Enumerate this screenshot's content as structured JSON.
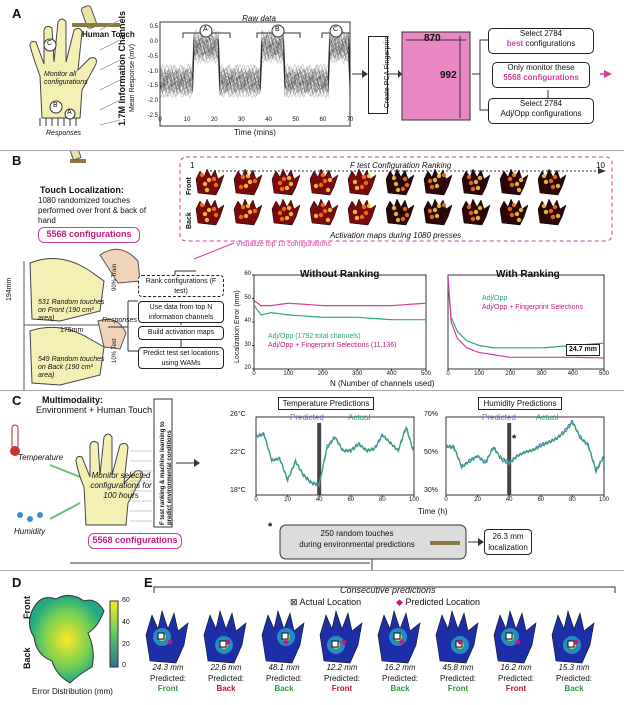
{
  "panels": {
    "a": {
      "letter": "A",
      "raw_title": "Raw data",
      "yaxis": "Mean Response (mV)",
      "xaxis": "Time (mins)",
      "channels": "1.7M Information Channels",
      "human_touch": "Human Touch",
      "monitor": "Monitor all configurations",
      "responses": "Responses",
      "phase_labels": [
        "A",
        "B",
        "C"
      ],
      "hand_letters": [
        "C",
        "B",
        "A"
      ],
      "ticks_x": [
        "0",
        "10",
        "20",
        "30",
        "40",
        "50",
        "60",
        "70"
      ],
      "ticks_y": [
        "0.5",
        "0.0",
        "-0.5",
        "-1.0",
        "-1.5",
        "-2.0",
        "-2.5"
      ],
      "pca": "Create PCA Fingerprint",
      "mat_w": "870",
      "mat_h": "992",
      "select_best_1": "Select 2784",
      "select_best_2": "best",
      "select_best_3": "configurations",
      "only_1": "Only monitor these",
      "only_2": "5568 configurations",
      "select_adj_1": "Select 2784",
      "select_adj_2": "Adj/Opp configurations"
    },
    "b": {
      "letter": "B",
      "touch_title": "Touch Localization:",
      "touch_desc": "1080 randomized touches performed over front & back of hand",
      "configs": "5568 configurations",
      "ranking_title": "F test Configuration Ranking",
      "rank_start": "1",
      "rank_end": "10",
      "front": "Front",
      "back": "Back",
      "maps_caption": "Activation maps during 1080 presses",
      "visualize": "Visualize top 10 configurations",
      "dim_v": "194mm",
      "dim_h": "175mm",
      "front_touches": "531 Random touches on Front (190 cm² area)",
      "back_touches": "549 Random touches on Back (190 cm² area)",
      "responses": "Responses",
      "train": "90% Train",
      "test": "10% Test",
      "steps": [
        "Rank configurations (F test)",
        "Use data from top N information channels",
        "Build activation maps",
        "Predict test set locations using WAMs"
      ],
      "without": "Without Ranking",
      "with": "With Ranking",
      "yaxis": "Localization Error (mm)",
      "xaxis": "N (Number of channels used)",
      "legend_left": [
        "Adj/Opp (1792 total channels)",
        "Adj/Opp + Fingerprint Selections (11,136)"
      ],
      "legend_right": [
        "Adj/Opp",
        "Adj/Opp + Fingerprint Selections"
      ],
      "error_value": "24.7 mm"
    },
    "c": {
      "letter": "C",
      "multi_title": "Multimodality:",
      "multi_desc": "Environment + Human Touch",
      "temperature": "Temperature",
      "humidity": "Humidity",
      "monitor": "Monitor selected configurations for 100 hours",
      "configs": "5568 configurations",
      "vertical": "F test ranking & machine learning to predict environmental conditions",
      "temp_title": "Temperature Predictions",
      "hum_title": "Humidity Predictions",
      "pred": "Predicted",
      "actual": "Actual",
      "temp_y": [
        "26°C",
        "22°C",
        "18°C"
      ],
      "hum_y": [
        "70%",
        "50%",
        "30%"
      ],
      "xaxis": "Time (h)",
      "star": "*",
      "touch_box_1": "250 random touches",
      "touch_box_2": "during environmental predictions",
      "result": "26.3 mm localization"
    },
    "d": {
      "letter": "D",
      "front": "Front",
      "back": "Back",
      "caption": "Error Distribution (mm)",
      "scale": [
        "60",
        "40",
        "20",
        "0"
      ]
    },
    "e": {
      "letter": "E",
      "title": "Consecutive predictions",
      "actual": "Actual Location",
      "predicted": "Predicted Location",
      "predicted_label": "Predicted:",
      "items": [
        {
          "err": "24.3 mm",
          "side": "Front",
          "ok": true
        },
        {
          "err": "22.6 mm",
          "side": "Back",
          "ok": false
        },
        {
          "err": "48.1 mm",
          "side": "Back",
          "ok": true
        },
        {
          "err": "12.2 mm",
          "side": "Front",
          "ok": false
        },
        {
          "err": "16.2 mm",
          "side": "Back",
          "ok": true
        },
        {
          "err": "45.8 mm",
          "side": "Front",
          "ok": true
        },
        {
          "err": "16.2 mm",
          "side": "Front",
          "ok": false
        },
        {
          "err": "15.3 mm",
          "side": "Back",
          "ok": true
        }
      ]
    }
  },
  "colors": {
    "pink": "#d63ba0",
    "green": "#2aa776",
    "blue_line": "#6f6fc9",
    "correct": "#2a9b3a",
    "wrong": "#c4162a",
    "hand": "#f4f0b4"
  },
  "chart_data": [
    {
      "type": "line",
      "title": "Without Ranking",
      "xlabel": "N (Number of channels used)",
      "ylabel": "Localization Error (mm)",
      "xlim": [
        0,
        500
      ],
      "ylim": [
        20,
        60
      ],
      "series": [
        {
          "name": "Adj/Opp (1792 total channels)",
          "x": [
            1,
            20,
            50,
            100,
            200,
            300,
            400,
            500
          ],
          "y": [
            47,
            43,
            44,
            43,
            42,
            42,
            41,
            41
          ]
        },
        {
          "name": "Adj/Opp + Fingerprint Selections (11,136)",
          "x": [
            1,
            20,
            50,
            100,
            200,
            300,
            400,
            500
          ],
          "y": [
            49,
            47,
            47,
            48,
            47,
            47,
            47,
            48
          ]
        }
      ]
    },
    {
      "type": "line",
      "title": "With Ranking",
      "xlabel": "N (Number of channels used)",
      "ylabel": "",
      "xlim": [
        0,
        500
      ],
      "ylim": [
        20,
        60
      ],
      "series": [
        {
          "name": "Adj/Opp",
          "x": [
            1,
            10,
            30,
            60,
            100,
            150,
            200,
            300,
            400,
            500
          ],
          "y": [
            55,
            42,
            36,
            32,
            30,
            29,
            29,
            29,
            30,
            31
          ]
        },
        {
          "name": "Adj/Opp + Fingerprint Selections",
          "x": [
            1,
            10,
            30,
            60,
            100,
            150,
            200,
            300,
            400,
            500
          ],
          "y": [
            58,
            40,
            33,
            29,
            27,
            26,
            25,
            25,
            25,
            24.7
          ]
        }
      ]
    },
    {
      "type": "line",
      "title": "Temperature Predictions",
      "xlabel": "Time (h)",
      "ylabel": "",
      "xlim": [
        0,
        100
      ],
      "ylim": [
        18,
        26
      ],
      "series": [
        {
          "name": "Predicted",
          "x": [
            0,
            5,
            10,
            15,
            20,
            25,
            30,
            35,
            40,
            45,
            50,
            55,
            60,
            65,
            70,
            75,
            80,
            85,
            90,
            95,
            100
          ],
          "y": [
            24,
            24.3,
            21.5,
            21.8,
            19.5,
            21.5,
            20,
            19.2,
            19,
            23,
            24,
            22.5,
            22.6,
            23.3,
            22.5,
            22.8,
            24.2,
            23.3,
            22.6,
            25,
            22.3
          ]
        },
        {
          "name": "Actual",
          "x": [
            0,
            5,
            10,
            15,
            20,
            25,
            30,
            35,
            40,
            45,
            50,
            55,
            60,
            65,
            70,
            75,
            80,
            85,
            90,
            95,
            100
          ],
          "y": [
            24,
            24.2,
            21.6,
            21.7,
            19.6,
            21.4,
            20.1,
            19.3,
            19.1,
            22.8,
            23.9,
            22.6,
            22.5,
            23.2,
            22.6,
            22.7,
            24.1,
            23.4,
            22.5,
            24.9,
            22.4
          ]
        }
      ]
    },
    {
      "type": "line",
      "title": "Humidity Predictions",
      "xlabel": "Time (h)",
      "ylabel": "",
      "xlim": [
        0,
        100
      ],
      "ylim": [
        30,
        70
      ],
      "series": [
        {
          "name": "Predicted",
          "x": [
            0,
            5,
            10,
            15,
            20,
            25,
            30,
            35,
            40,
            45,
            50,
            55,
            60,
            65,
            70,
            75,
            80,
            85,
            90,
            95,
            100
          ],
          "y": [
            55,
            55,
            44,
            48,
            50,
            46,
            55,
            48,
            46,
            50,
            52,
            53,
            56,
            57,
            59,
            63,
            68,
            59,
            56,
            42,
            50
          ]
        },
        {
          "name": "Actual",
          "x": [
            0,
            5,
            10,
            15,
            20,
            25,
            30,
            35,
            40,
            45,
            50,
            55,
            60,
            65,
            70,
            75,
            80,
            85,
            90,
            95,
            100
          ],
          "y": [
            55,
            54,
            45,
            47,
            50,
            47,
            54,
            49,
            47,
            50,
            52,
            53,
            55,
            57,
            59,
            62,
            67,
            60,
            55,
            43,
            50
          ]
        }
      ]
    }
  ]
}
